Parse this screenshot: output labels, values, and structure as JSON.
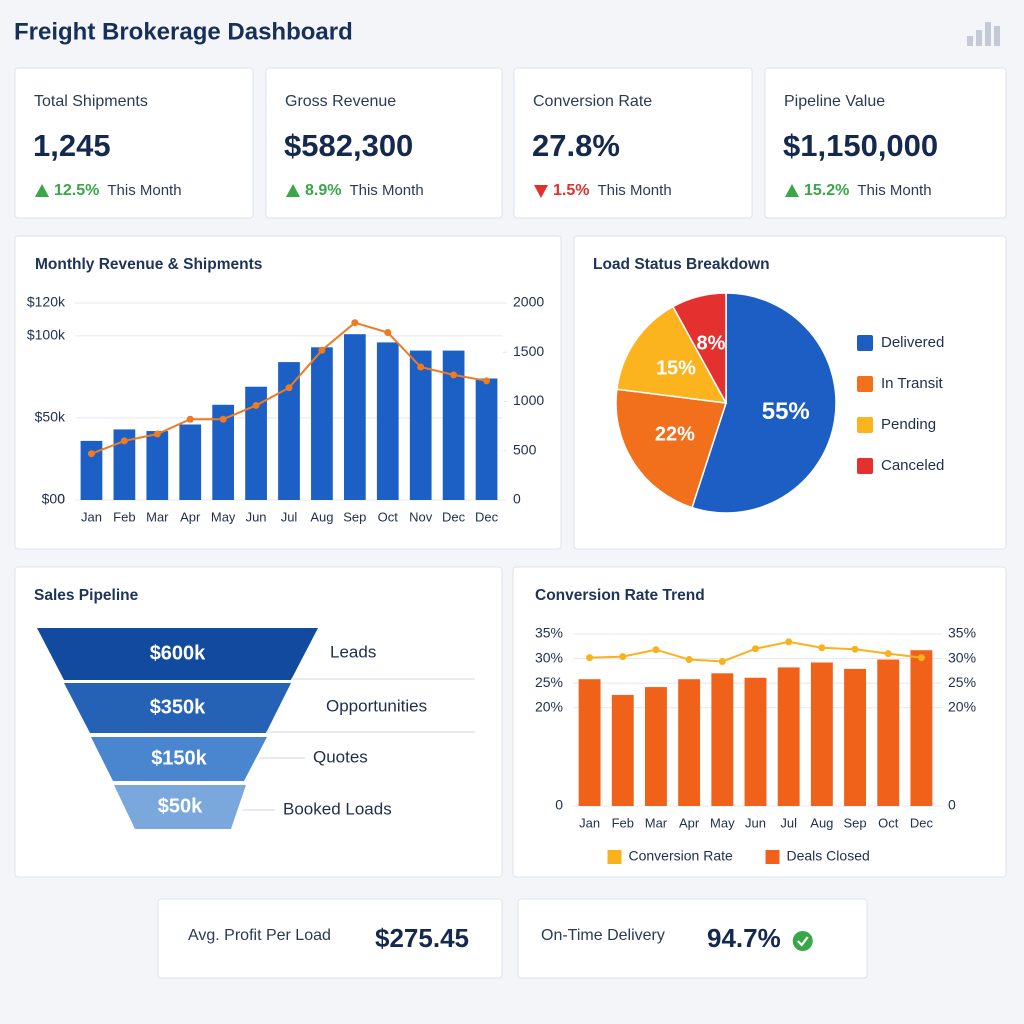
{
  "header": {
    "title": "Freight Brokerage Dashboard"
  },
  "kpis": [
    {
      "label": "Total Shipments",
      "value": "1,245",
      "change": "12.5%",
      "trend": "up",
      "period": "This Month"
    },
    {
      "label": "Gross Revenue",
      "value": "$582,300",
      "change": "8.9%",
      "trend": "up",
      "period": "This Month"
    },
    {
      "label": "Conversion Rate",
      "value": "27.8%",
      "change": "1.5%",
      "trend": "down",
      "period": "This Month"
    },
    {
      "label": "Pipeline Value",
      "value": "$1,150,000",
      "change": "15.2%",
      "trend": "up",
      "period": "This Month"
    }
  ],
  "chart_data": [
    {
      "type": "bar",
      "title": "Monthly Revenue & Shipments",
      "categories": [
        "Jan",
        "Feb",
        "Mar",
        "Apr",
        "May",
        "Jun",
        "Jul",
        "Aug",
        "Sep",
        "Oct",
        "Nov",
        "Dec",
        "Dec"
      ],
      "series": [
        {
          "color": "#1c5fc5",
          "values": [
            36000,
            43000,
            42000,
            46000,
            58000,
            69000,
            84000,
            93000,
            101000,
            96000,
            91000,
            91000,
            74000
          ]
        },
        {
          "type": "line",
          "color": "#f07a21",
          "axis": "y2",
          "values": [
            470,
            600,
            670,
            820,
            820,
            960,
            1140,
            1520,
            1800,
            1700,
            1350,
            1270,
            1210
          ]
        }
      ],
      "ylim": [
        0,
        120000
      ],
      "yticks": [
        {
          "value": 120000,
          "label": "$120k"
        },
        {
          "value": 100000,
          "label": "$100k"
        },
        {
          "value": 50000,
          "label": "$50k"
        },
        {
          "value": 0,
          "label": "$00"
        },
        0
      ],
      "y2lim": [
        0,
        2000
      ],
      "y2ticks": [
        2000,
        1500,
        1000,
        500,
        0
      ],
      "grid": true
    },
    {
      "type": "pie",
      "title": "Load Status Breakdown",
      "categories": [
        "Delivered",
        "In Transit",
        "Pending",
        "Canceled"
      ],
      "values": [
        55,
        22,
        15,
        8
      ],
      "value_labels": [
        "55%",
        "22%",
        "15%",
        "8%"
      ],
      "colors": [
        "#1d5ec4",
        "#f26f1c",
        "#fbb41d",
        "#e53030"
      ],
      "legend": "right"
    },
    {
      "type": "funnel",
      "title": "Sales Pipeline",
      "categories": [
        "Leads",
        "Opportunities",
        "Quotes",
        "Booked Loads"
      ],
      "values": [
        600000,
        350000,
        150000,
        50000
      ],
      "value_labels": [
        "$600k",
        "$350k",
        "$150k",
        "$50k"
      ],
      "colors": [
        "#114a9e",
        "#2562b6",
        "#4a86cf",
        "#7ba8dc"
      ]
    },
    {
      "type": "bar",
      "title": "Conversion Rate Trend",
      "categories": [
        "Jan",
        "Feb",
        "Mar",
        "Apr",
        "May",
        "Jun",
        "Jul",
        "Aug",
        "Sep",
        "Oct",
        "Dec"
      ],
      "series": [
        {
          "name": "Conversion Rate",
          "type": "line",
          "color": "#f9b21c",
          "axis": "y2",
          "values": [
            30.2,
            30.4,
            31.8,
            29.8,
            29.4,
            32.0,
            33.4,
            32.2,
            31.9,
            31.0,
            30.2
          ]
        },
        {
          "name": "Deals Closed",
          "color": "#f0621a",
          "values": [
            25.8,
            22.6,
            24.2,
            25.8,
            27.0,
            26.1,
            28.2,
            29.2,
            27.9,
            29.8,
            31.7
          ]
        }
      ],
      "ylim": [
        0,
        35
      ],
      "yticks": [
        {
          "value": 35,
          "label": "35%"
        },
        {
          "value": 30,
          "label": "30%"
        },
        {
          "value": 25,
          "label": "25%"
        },
        {
          "value": 20,
          "label": "20%"
        },
        0
      ],
      "y2lim": [
        0,
        35
      ],
      "y2ticks": [
        {
          "value": 35,
          "label": "35%"
        },
        {
          "value": 30,
          "label": "30%"
        },
        {
          "value": 25,
          "label": "25%"
        },
        {
          "value": 20,
          "label": "20%"
        },
        0
      ],
      "grid": true,
      "legend": "bottom"
    }
  ],
  "summary": [
    {
      "label": "Avg. Profit Per Load",
      "value": "$275.45"
    },
    {
      "label": "On-Time Delivery",
      "value": "94.7%"
    }
  ]
}
